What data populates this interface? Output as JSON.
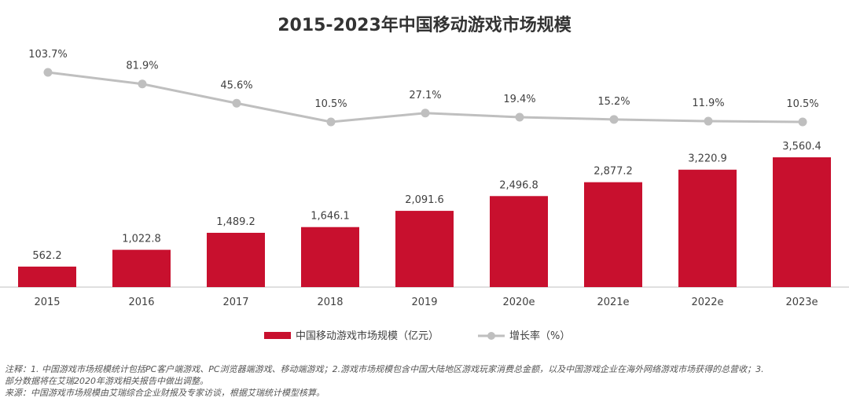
{
  "chart_data": {
    "type": "bar",
    "title": "2015-2023年中国移动游戏市场规模",
    "categories": [
      "2015",
      "2016",
      "2017",
      "2018",
      "2019",
      "2020e",
      "2021e",
      "2022e",
      "2023e"
    ],
    "series": [
      {
        "name": "中国移动游戏市场规模（亿元）",
        "type": "bar",
        "color": "#c8102e",
        "values": [
          562.2,
          1022.8,
          1489.2,
          1646.1,
          2091.6,
          2496.8,
          2877.2,
          3220.9,
          3560.4
        ],
        "labels": [
          "562.2",
          "1,022.8",
          "1,489.2",
          "1,646.1",
          "2,091.6",
          "2,496.8",
          "2,877.2",
          "3,220.9",
          "3,560.4"
        ]
      },
      {
        "name": "增长率（%）",
        "type": "line",
        "color": "#bfbfbf",
        "values": [
          103.7,
          81.9,
          45.6,
          10.5,
          27.1,
          19.4,
          15.2,
          11.9,
          10.5
        ],
        "labels": [
          "103.7%",
          "81.9%",
          "45.6%",
          "10.5%",
          "27.1%",
          "19.4%",
          "15.2%",
          "11.9%",
          "10.5%"
        ]
      }
    ],
    "legend_position": "bottom-center",
    "grid": false
  },
  "notes": {
    "line1": "注释：1. 中国游戏市场规模统计包括PC客户端游戏、PC浏览器端游戏、移动端游戏；2.游戏市场规模包含中国大陆地区游戏玩家消费总金额，以及中国游戏企业在海外网络游戏市场获得的总营收；3.",
    "line2": "部分数据将在艾瑞2020年游戏相关报告中做出调整。",
    "line3": "来源：中国游戏市场规模由艾瑞综合企业财报及专家访谈，根据艾瑞统计模型核算。"
  }
}
